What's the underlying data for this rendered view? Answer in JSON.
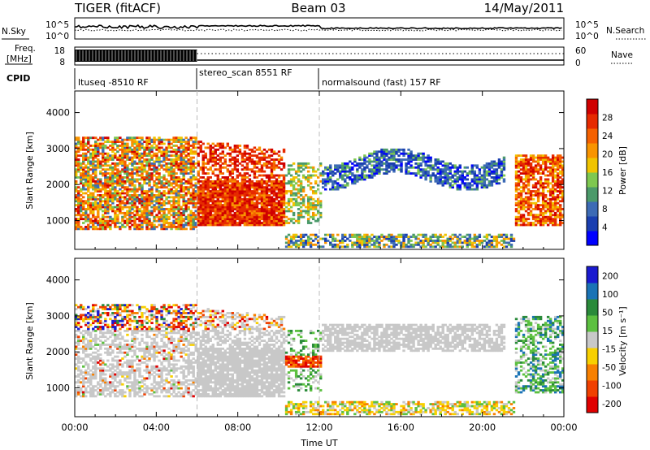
{
  "header": {
    "left_title": "TIGER (fitACF)",
    "center_title": "Beam 03",
    "right_title": "14/May/2011"
  },
  "status_panels": {
    "nsky_label": "N.Sky",
    "nsearch_label": "N.Search",
    "freq_label_1": "Freq.",
    "freq_label_2": "[MHz]",
    "nave_label": "Nave",
    "cpid_label": "CPID",
    "noise_ticks_left": [
      "10^5",
      "10^0"
    ],
    "noise_ticks_right": [
      "10^5",
      "10^0"
    ],
    "freq_ticks": [
      "18",
      "8"
    ],
    "nave_ticks": [
      "60",
      "0"
    ],
    "cpid_segments": [
      {
        "label": "ltuseq -8510 RF",
        "start_hour": 0,
        "end_hour": 6
      },
      {
        "label": "stereo_scan 8551 RF",
        "start_hour": 6,
        "end_hour": 12
      },
      {
        "label": "normalsound (fast) 157 RF",
        "start_hour": 12,
        "end_hour": 24
      }
    ]
  },
  "time_axis": {
    "label": "Time UT",
    "ticks": [
      "00:00",
      "04:00",
      "08:00",
      "12:00",
      "16:00",
      "20:00",
      "00:00"
    ]
  },
  "chart_data": [
    {
      "type": "heatmap",
      "title": "",
      "xlabel": "Time UT",
      "ylabel": "Slant Range [km]",
      "x_range_hours": [
        0,
        24
      ],
      "ylim": [
        200,
        4600
      ],
      "yticks": [
        1000,
        2000,
        3000,
        4000
      ],
      "colorbar": {
        "label": "Power [dB]",
        "ticks": [
          4,
          8,
          12,
          16,
          20,
          24,
          28
        ],
        "range": [
          0,
          32
        ],
        "colors": [
          "#0000ff",
          "#1a3fb0",
          "#3d6bb5",
          "#4b9a6a",
          "#7ec850",
          "#f0c400",
          "#f89400",
          "#f56100",
          "#e62a00",
          "#d00000"
        ]
      },
      "regions": [
        {
          "name": "ltuseq block",
          "start_hour": 0.0,
          "end_hour": 6.0,
          "range_km": [
            700,
            3300
          ],
          "level": "mixed 8–28 dB"
        },
        {
          "name": "strong near-range echo",
          "start_hour": 6.0,
          "end_hour": 10.2,
          "range_km": [
            800,
            3300
          ],
          "level": "24–30 dB"
        },
        {
          "name": "high-latitude band",
          "start_hour": 12.0,
          "end_hour": 21.0,
          "range_km": [
            1800,
            3200
          ],
          "level": "4–12 dB"
        },
        {
          "name": "ground scatter band",
          "start_hour": 10.0,
          "end_hour": 21.5,
          "range_km": [
            250,
            600
          ],
          "level": "4–20 dB"
        },
        {
          "name": "evening echo",
          "start_hour": 21.5,
          "end_hour": 24.0,
          "range_km": [
            800,
            2800
          ],
          "level": "20–30 dB"
        }
      ]
    },
    {
      "type": "heatmap",
      "title": "",
      "xlabel": "Time UT",
      "ylabel": "Slant Range [km]",
      "x_range_hours": [
        0,
        24
      ],
      "ylim": [
        200,
        4600
      ],
      "yticks": [
        1000,
        2000,
        3000,
        4000
      ],
      "colorbar": {
        "label": "Velocity [m s⁻¹]",
        "ticks": [
          "200",
          "100",
          "50",
          "15",
          "-15",
          "-50",
          "-100",
          "-200"
        ],
        "colors": [
          "#1a1ad0",
          "#1a73b5",
          "#2a8a3a",
          "#5cc040",
          "#c8c8c8",
          "#f8d000",
          "#f88000",
          "#f04000",
          "#e00000"
        ]
      },
      "regions": [
        {
          "name": "ltuseq block",
          "start_hour": 0.0,
          "end_hour": 6.0,
          "range_km": [
            700,
            3300
          ],
          "level": "-15 to 15 (ground scatter)"
        },
        {
          "name": "stereo_scan echo",
          "start_hour": 6.0,
          "end_hour": 10.2,
          "range_km": [
            700,
            3200
          ],
          "level": "mostly ±15"
        },
        {
          "name": "strong negative patch",
          "start_hour": 10.0,
          "end_hour": 12.0,
          "range_km": [
            1600,
            1900
          ],
          "level": "-100 to -200"
        },
        {
          "name": "high-latitude band",
          "start_hour": 12.0,
          "end_hour": 21.0,
          "range_km": [
            2000,
            2700
          ],
          "level": "-15 to 15"
        },
        {
          "name": "near range band",
          "start_hour": 10.0,
          "end_hour": 21.5,
          "range_km": [
            250,
            600
          ],
          "level": "-15 to -50"
        },
        {
          "name": "evening echo",
          "start_hour": 21.5,
          "end_hour": 24.0,
          "range_km": [
            800,
            3000
          ],
          "level": "15 to 50"
        }
      ]
    }
  ]
}
